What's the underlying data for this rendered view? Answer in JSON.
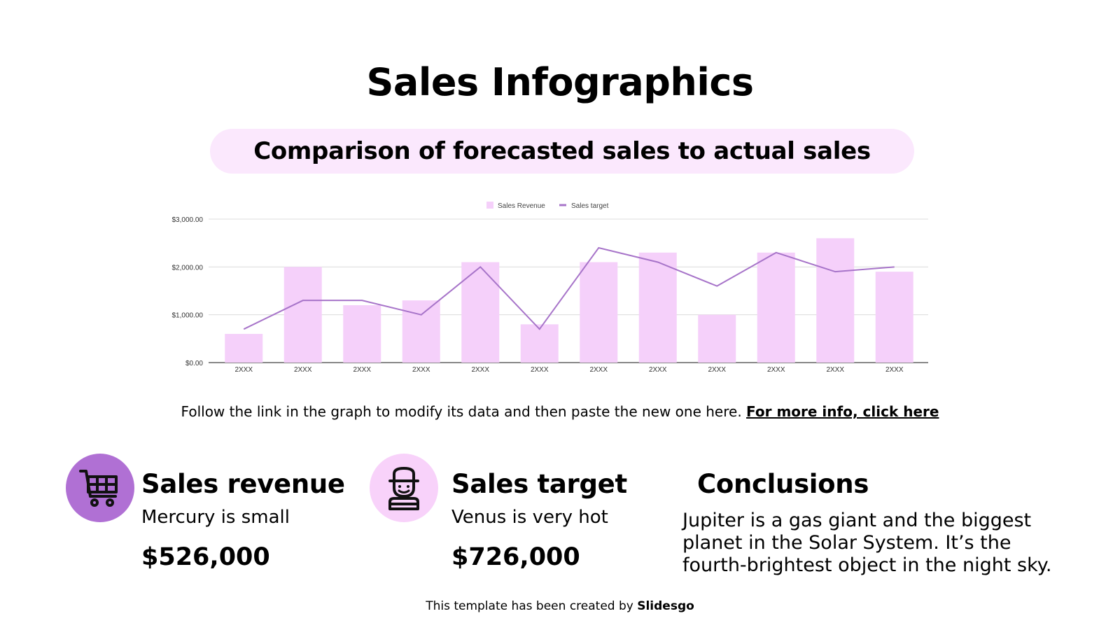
{
  "slide": {
    "title": "Sales Infographics",
    "subtitle": "Comparison of forecasted sales to actual sales",
    "note": "Follow the link in the graph to modify its data and then paste the new one here.",
    "note_link": "For more info, click here",
    "footer_prefix": "This template has been created by",
    "footer_brand": "Slidesgo"
  },
  "stats": [
    {
      "title": "Sales revenue",
      "subtitle": "Mercury is small",
      "value": "$526,000",
      "icon": "shopping-cart-icon",
      "circle_color": "#b070d4"
    },
    {
      "title": "Sales target",
      "subtitle": "Venus is very hot",
      "value": "$726,000",
      "icon": "salesperson-icon",
      "circle_color": "#f8d2fa"
    }
  ],
  "conclusions": {
    "title": "Conclusions",
    "body": "Jupiter is a gas giant and the biggest planet in the Solar System. It’s the fourth-brightest object in the night sky."
  },
  "colors": {
    "bar": "#f5d0fa",
    "line": "#a774c9",
    "pill": "#fbe8fd",
    "grid": "#dcdcdc",
    "axis": "#888888"
  },
  "chart_data": {
    "type": "bar",
    "title": "",
    "categories": [
      "2XXX",
      "2XXX",
      "2XXX",
      "2XXX",
      "2XXX",
      "2XXX",
      "2XXX",
      "2XXX",
      "2XXX",
      "2XXX",
      "2XXX",
      "2XXX"
    ],
    "series": [
      {
        "name": "Sales Revenue",
        "type": "bar",
        "values": [
          600,
          2000,
          1200,
          1300,
          2100,
          800,
          2100,
          2300,
          1000,
          2300,
          2600,
          1900
        ]
      },
      {
        "name": "Sales target",
        "type": "line",
        "values": [
          700,
          1300,
          1300,
          1000,
          2000,
          700,
          2400,
          2100,
          1600,
          2300,
          1900,
          2000
        ]
      }
    ],
    "yticks": [
      "$0.00",
      "$1,000.00",
      "$2,000.00",
      "$3,000.00"
    ],
    "ylim": [
      0,
      3000
    ],
    "xlabel": "",
    "ylabel": "",
    "grid": true,
    "legend_position": "top"
  }
}
